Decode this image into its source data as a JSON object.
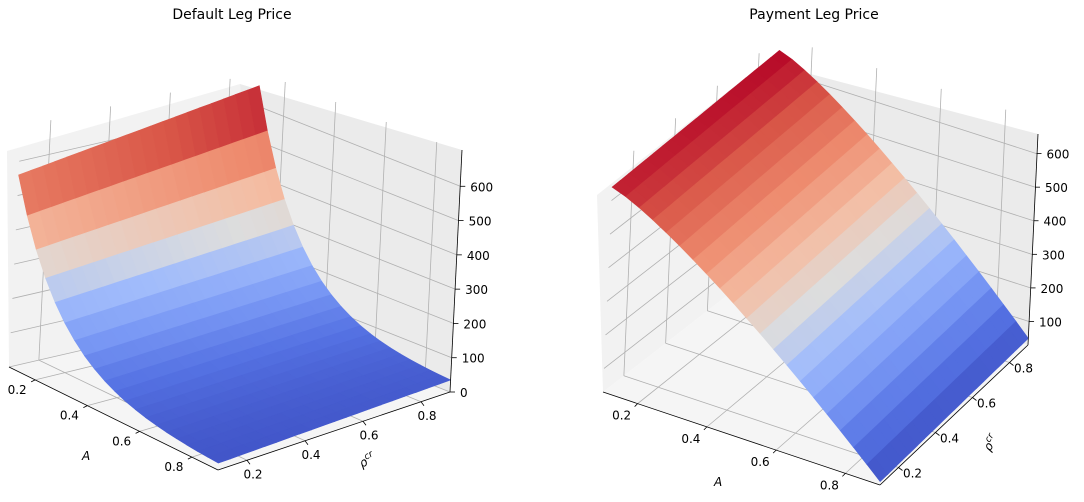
{
  "chart_data": [
    {
      "type": "surface",
      "title": "Default Leg Price",
      "xlabel": "A",
      "ylabel": "ρ",
      "ylabel_superscript": "cr",
      "x_ticks": [
        "0.2",
        "0.4",
        "0.6",
        "0.8"
      ],
      "y_ticks": [
        "0.2",
        "0.4",
        "0.6",
        "0.8"
      ],
      "z_ticks": [
        "0",
        "100",
        "200",
        "300",
        "400",
        "500",
        "600"
      ],
      "xlim": [
        0.1,
        0.9
      ],
      "ylim": [
        0.1,
        0.9
      ],
      "zlim": [
        0,
        700
      ],
      "x": [
        0.1,
        0.9
      ],
      "y": [
        0.1,
        0.9
      ],
      "surface": "z decreases steeply with A (about 600 at A=0.1 to about 30 at A=0.9), increases mildly with rho",
      "corner_values": {
        "A0.1_rho0.1": 560,
        "A0.1_rho0.9": 660,
        "A0.9_rho0.1": 20,
        "A0.9_rho0.9": 35
      },
      "colormap": "coolwarm",
      "grid": true
    },
    {
      "type": "surface",
      "title": "Payment Leg Price",
      "xlabel": "A",
      "ylabel": "ρ",
      "ylabel_superscript": "cr",
      "x_ticks": [
        "0.2",
        "0.4",
        "0.6",
        "0.8"
      ],
      "y_ticks": [
        "0.2",
        "0.4",
        "0.6",
        "0.8"
      ],
      "z_ticks": [
        "100",
        "200",
        "300",
        "400",
        "500",
        "600"
      ],
      "xlim": [
        0.1,
        0.9
      ],
      "ylim": [
        0.1,
        0.9
      ],
      "zlim": [
        30,
        700
      ],
      "x": [
        0.1,
        0.9
      ],
      "y": [
        0.1,
        0.9
      ],
      "surface": "z decreases with A (about 660 at A=0.1 to about 40 at A=0.9), nearly constant in rho",
      "corner_values": {
        "A0.1_rho0.1": 640,
        "A0.1_rho0.9": 660,
        "A0.9_rho0.1": 40,
        "A0.9_rho0.9": 50
      },
      "colormap": "coolwarm",
      "grid": true
    }
  ]
}
